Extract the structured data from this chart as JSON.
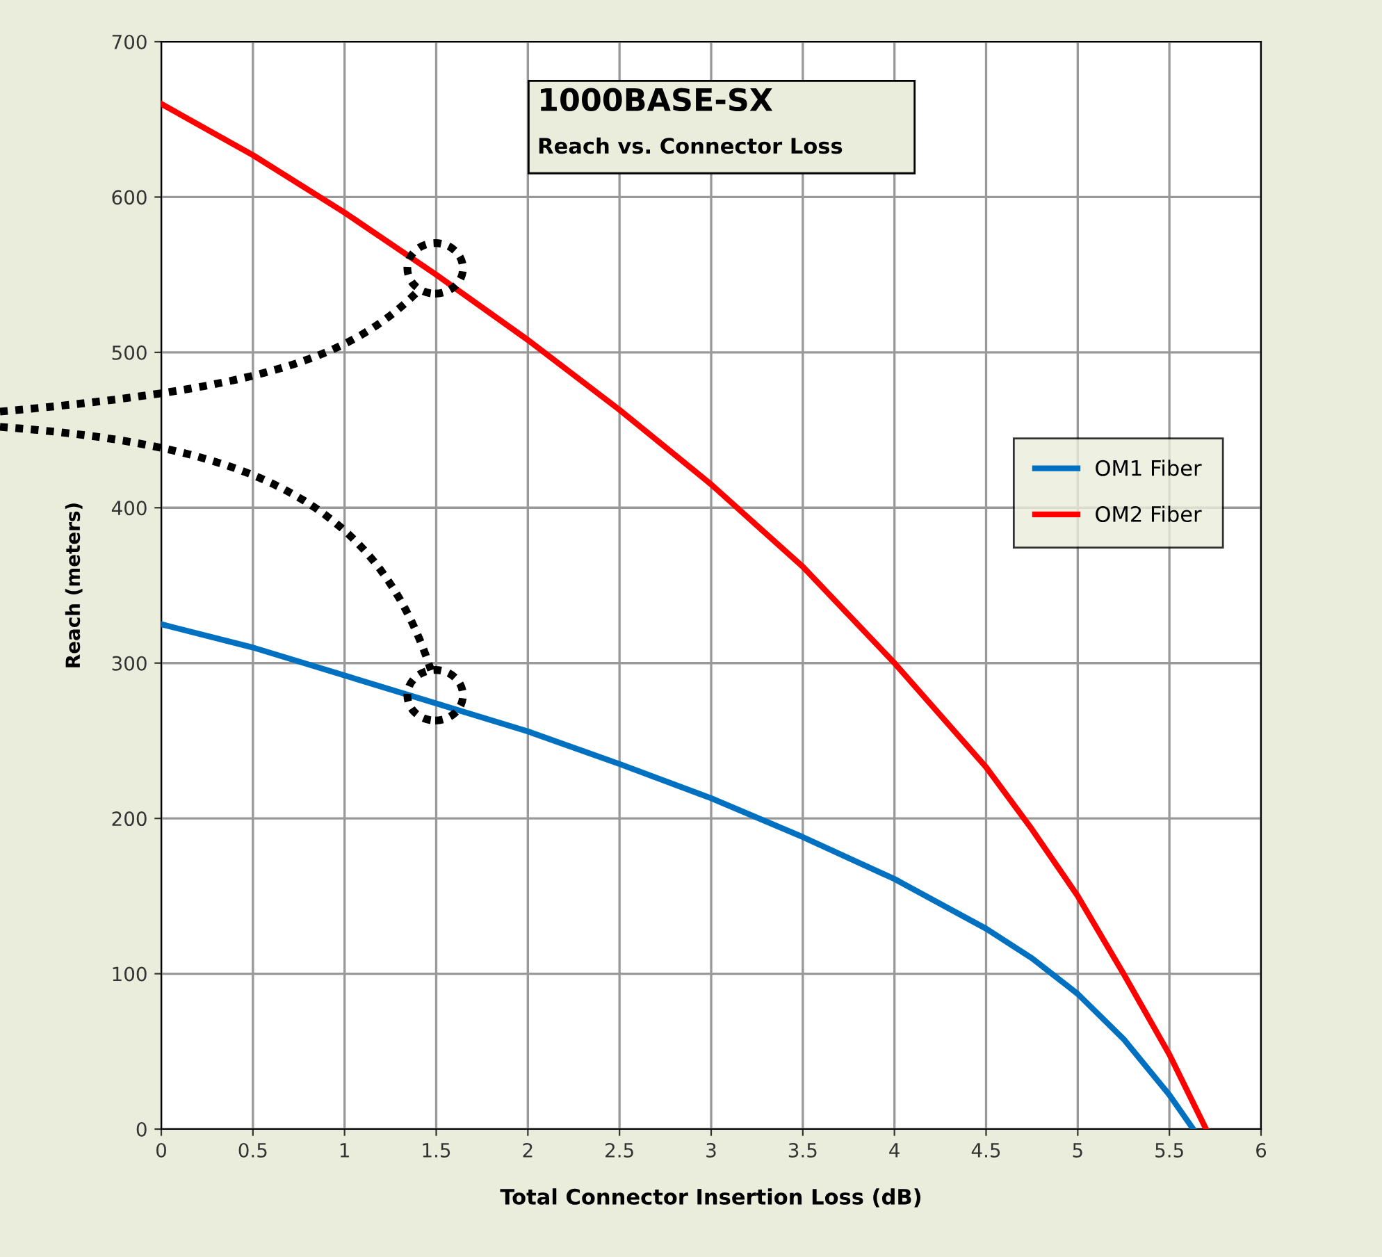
{
  "chart_data": {
    "type": "line",
    "title": "1000BASE-SX",
    "subtitle": "Reach vs. Connector Loss",
    "xlabel": "Total Connector Insertion Loss (dB)",
    "ylabel": "Reach (meters)",
    "series": [
      {
        "name": "OM1 Fiber",
        "color": "#0070c0",
        "x": [
          0,
          0.5,
          1,
          1.5,
          2,
          2.5,
          3,
          3.5,
          4,
          4.5,
          4.75,
          5,
          5.25,
          5.5,
          5.63
        ],
        "values": [
          325,
          310,
          292,
          274,
          256,
          235,
          213,
          188,
          161,
          129,
          110,
          87,
          58,
          22,
          0
        ]
      },
      {
        "name": "OM2 Fiber",
        "color": "#ff0000",
        "x": [
          0,
          0.5,
          1,
          1.5,
          2,
          2.5,
          3,
          3.5,
          4,
          4.5,
          4.75,
          5,
          5.25,
          5.5,
          5.7
        ],
        "values": [
          660,
          627,
          590,
          550,
          508,
          463,
          415,
          362,
          300,
          233,
          193,
          150,
          100,
          48,
          0
        ]
      }
    ],
    "xlim": [
      0,
      6
    ],
    "xticks": [
      0,
      0.5,
      1,
      1.5,
      2,
      2.5,
      3,
      3.5,
      4,
      4.5,
      5,
      5.5,
      6
    ],
    "ylim": [
      0,
      700
    ],
    "yticks": [
      0,
      100,
      200,
      300,
      400,
      500,
      600,
      700
    ],
    "grid": true,
    "legend": "right",
    "marker": "none",
    "line_style": "solid"
  }
}
